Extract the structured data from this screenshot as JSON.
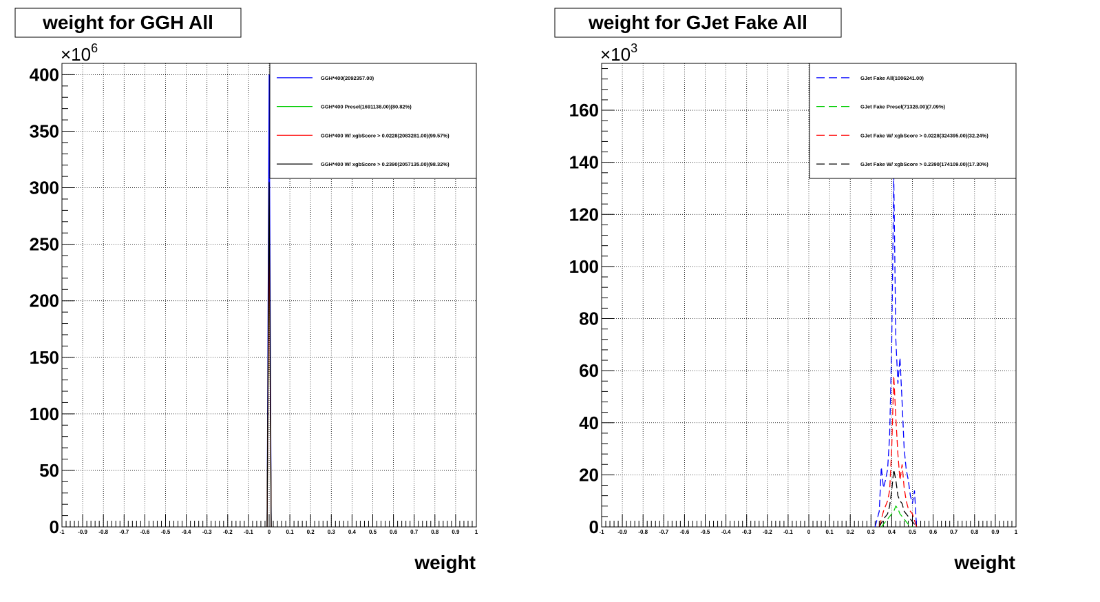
{
  "chart_data": [
    {
      "type": "line",
      "title": "weight for GGH All",
      "xlabel": "weight",
      "ylabel": "",
      "y_multiplier": "×10",
      "y_multiplier_exp": "6",
      "xlim": [
        -1,
        1
      ],
      "ylim": [
        0,
        410
      ],
      "x_ticks": [
        -1,
        -0.9,
        -0.8,
        -0.7,
        -0.6,
        -0.5,
        -0.4,
        -0.3,
        -0.2,
        -0.1,
        0,
        0.1,
        0.2,
        0.3,
        0.4,
        0.5,
        0.6,
        0.7,
        0.8,
        0.9,
        1
      ],
      "x_tick_labels": [
        "-1",
        "-0.9",
        "-0.8",
        "-0.7",
        "-0.6",
        "-0.5",
        "-0.4",
        "-0.3",
        "-0.2",
        "-0.1",
        "0",
        "0.1",
        "0.2",
        "0.3",
        "0.4",
        "0.5",
        "0.6",
        "0.7",
        "0.8",
        "0.9",
        "1"
      ],
      "y_ticks": [
        0,
        50,
        100,
        150,
        200,
        250,
        300,
        350,
        400
      ],
      "y_tick_labels": [
        "0",
        "50",
        "100",
        "150",
        "200",
        "250",
        "300",
        "350",
        "400"
      ],
      "grid": true,
      "legend_position": "top-right",
      "line_dash": "solid",
      "series": [
        {
          "name": "GGH*400(2092357.00)",
          "color": "#0000ff",
          "x": [
            -0.01,
            0.0,
            0.01
          ],
          "y": [
            0,
            400,
            0
          ]
        },
        {
          "name": "GGH*400 Presel(1691138.00)(80.82%)",
          "color": "#00cc00",
          "x": [
            -0.01,
            0.0,
            0.01
          ],
          "y": [
            0,
            265,
            0
          ]
        },
        {
          "name": "GGH*400 W/ xgbScore > 0.0228(2083281.00)(99.57%)",
          "color": "#ff0000",
          "x": [
            -0.01,
            0.0,
            0.01
          ],
          "y": [
            0,
            268,
            0
          ]
        },
        {
          "name": "GGH*400 W/ xgbScore > 0.2390(2057135.00)(98.32%)",
          "color": "#000000",
          "x": [
            -0.01,
            0.0,
            0.01
          ],
          "y": [
            0,
            305,
            0
          ]
        }
      ]
    },
    {
      "type": "line",
      "title": "weight for GJet Fake All",
      "xlabel": "weight",
      "ylabel": "",
      "y_multiplier": "×10",
      "y_multiplier_exp": "3",
      "xlim": [
        -1,
        1
      ],
      "ylim": [
        0,
        178
      ],
      "x_ticks": [
        -1,
        -0.9,
        -0.8,
        -0.7,
        -0.6,
        -0.5,
        -0.4,
        -0.3,
        -0.2,
        -0.1,
        0,
        0.1,
        0.2,
        0.3,
        0.4,
        0.5,
        0.6,
        0.7,
        0.8,
        0.9,
        1
      ],
      "x_tick_labels": [
        "-1",
        "-0.9",
        "-0.8",
        "-0.7",
        "-0.6",
        "-0.5",
        "-0.4",
        "-0.3",
        "-0.2",
        "-0.1",
        "0",
        "0.1",
        "0.2",
        "0.3",
        "0.4",
        "0.5",
        "0.6",
        "0.7",
        "0.8",
        "0.9",
        "1"
      ],
      "y_ticks": [
        0,
        20,
        40,
        60,
        80,
        100,
        120,
        140,
        160
      ],
      "y_tick_labels": [
        "0",
        "20",
        "40",
        "60",
        "80",
        "100",
        "120",
        "140",
        "160"
      ],
      "grid": true,
      "legend_position": "top-right",
      "line_dash": "dashed",
      "series": [
        {
          "name": "GJet Fake All(1006241.00)",
          "color": "#0000ff",
          "x": [
            0.32,
            0.34,
            0.35,
            0.36,
            0.37,
            0.38,
            0.39,
            0.4,
            0.41,
            0.42,
            0.43,
            0.44,
            0.45,
            0.46,
            0.47,
            0.48,
            0.49,
            0.5,
            0.51,
            0.52
          ],
          "y": [
            0,
            6,
            23,
            15,
            18,
            22,
            35,
            70,
            135,
            72,
            55,
            65,
            48,
            30,
            22,
            18,
            12,
            9,
            14,
            0
          ]
        },
        {
          "name": "GJet Fake Presel(71328.00)(7.09%)",
          "color": "#00cc00",
          "x": [
            0.35,
            0.37,
            0.39,
            0.4,
            0.41,
            0.42,
            0.43,
            0.44,
            0.45,
            0.46,
            0.48,
            0.5
          ],
          "y": [
            0,
            2,
            4,
            5,
            6,
            8,
            7,
            5,
            4,
            3,
            1,
            0
          ]
        },
        {
          "name": "GJet Fake W/ xgbScore > 0.0228(324395.00)(32.24%)",
          "color": "#ff0000",
          "x": [
            0.34,
            0.36,
            0.37,
            0.38,
            0.39,
            0.4,
            0.41,
            0.42,
            0.43,
            0.44,
            0.45,
            0.46,
            0.47,
            0.48,
            0.5,
            0.52
          ],
          "y": [
            0,
            6,
            8,
            10,
            14,
            30,
            58,
            42,
            28,
            18,
            24,
            15,
            10,
            7,
            5,
            0
          ]
        },
        {
          "name": "GJet Fake W/ xgbScore > 0.2390(174109.00)(17.30%)",
          "color": "#000000",
          "x": [
            0.34,
            0.36,
            0.38,
            0.39,
            0.4,
            0.41,
            0.42,
            0.43,
            0.44,
            0.45,
            0.46,
            0.48,
            0.5,
            0.52
          ],
          "y": [
            0,
            3,
            5,
            8,
            14,
            22,
            18,
            12,
            10,
            9,
            6,
            4,
            2,
            0
          ]
        }
      ]
    }
  ]
}
